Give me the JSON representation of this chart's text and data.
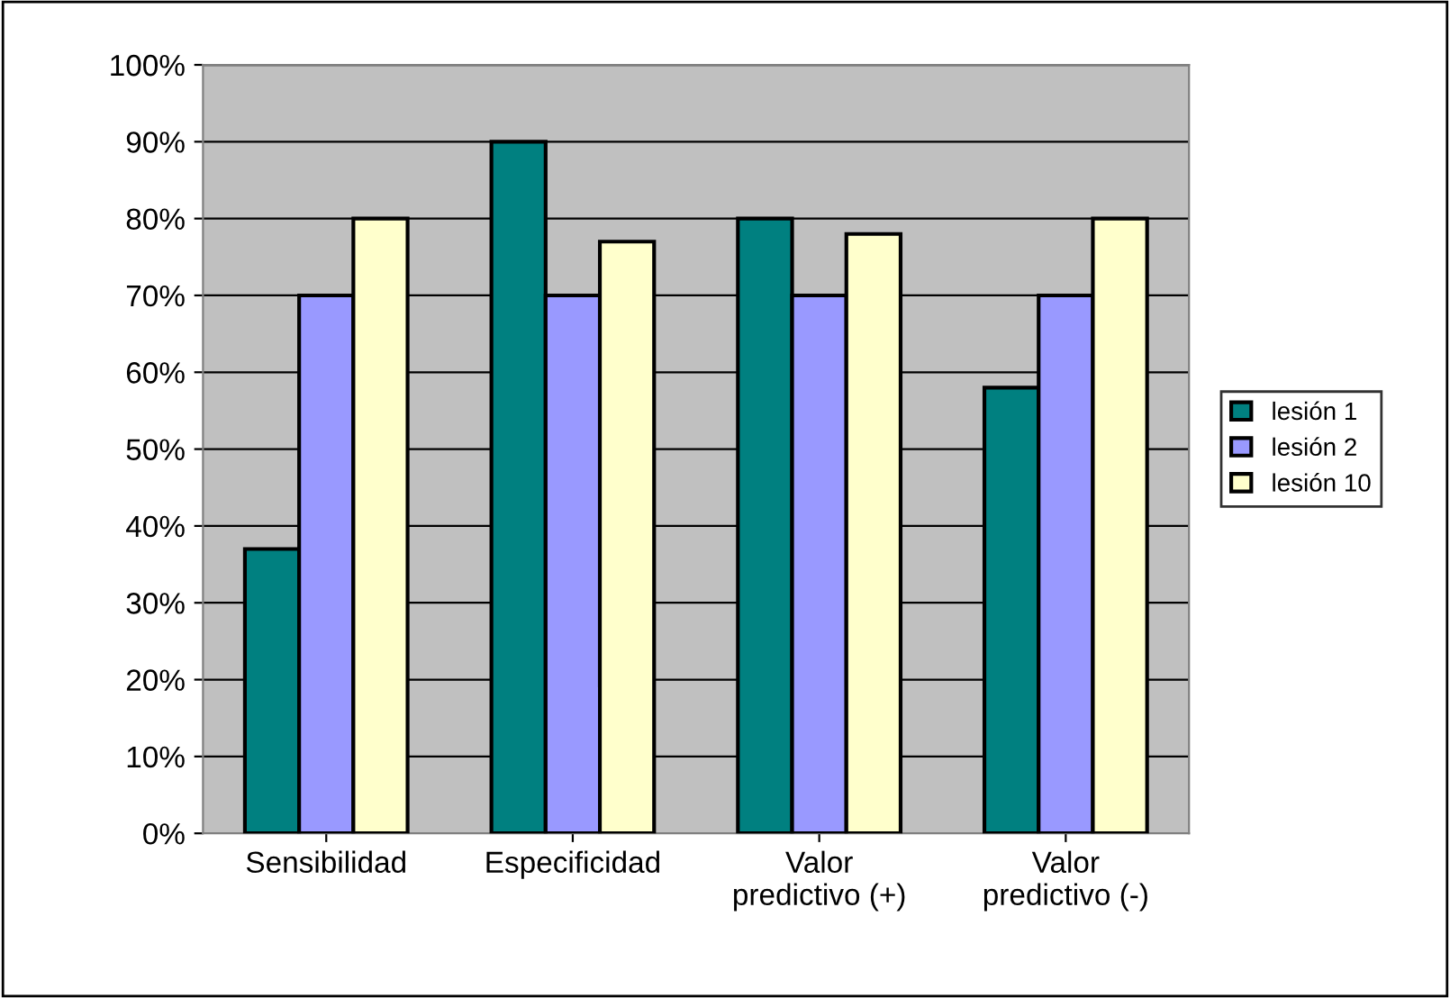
{
  "chart_data": {
    "type": "bar",
    "categories": [
      "Sensibilidad",
      "Especificidad",
      "Valor\npredictivo (+)",
      "Valor\npredictivo (-)"
    ],
    "series": [
      {
        "name": "lesión 1",
        "color": "#008080",
        "values": [
          37,
          90,
          80,
          58
        ]
      },
      {
        "name": "lesión 2",
        "color": "#9999ff",
        "values": [
          70,
          70,
          70,
          70
        ]
      },
      {
        "name": "lesión 10",
        "color": "#ffffcc",
        "values": [
          80,
          77,
          78,
          80
        ]
      }
    ],
    "ylim": [
      0,
      100
    ],
    "yticks": [
      {
        "value": 0,
        "label": "0%"
      },
      {
        "value": 10,
        "label": "10%"
      },
      {
        "value": 20,
        "label": "20%"
      },
      {
        "value": 30,
        "label": "30%"
      },
      {
        "value": 40,
        "label": "40%"
      },
      {
        "value": 50,
        "label": "50%"
      },
      {
        "value": 60,
        "label": "60%"
      },
      {
        "value": 70,
        "label": "70%"
      },
      {
        "value": 80,
        "label": "80%"
      },
      {
        "value": 90,
        "label": "90%"
      },
      {
        "value": 100,
        "label": "100%"
      }
    ],
    "grid": "y",
    "legend": "right"
  }
}
